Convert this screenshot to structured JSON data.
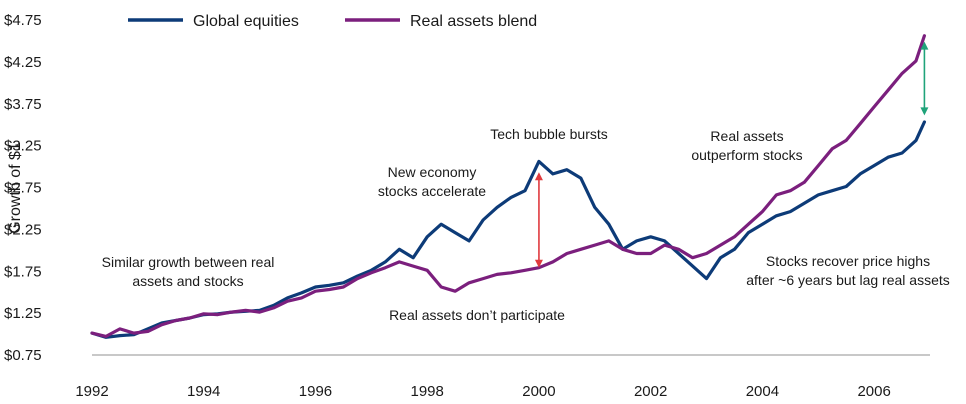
{
  "chart_data": {
    "type": "line",
    "ylabel": "Growth of $1",
    "xlabel": "",
    "xlim": [
      1992,
      2007
    ],
    "ylim": [
      0.75,
      4.75
    ],
    "x_ticks": [
      "1992",
      "1994",
      "1996",
      "1998",
      "2000",
      "2002",
      "2004",
      "2006"
    ],
    "y_ticks": [
      "$4.75",
      "$4.25",
      "$3.75",
      "$3.25",
      "$2.75",
      "$2.25",
      "$1.75",
      "$1.25",
      "$0.75"
    ],
    "grid": false,
    "legend": "top-left",
    "x": [
      1992.0,
      1992.25,
      1992.5,
      1992.75,
      1993.0,
      1993.25,
      1993.5,
      1993.75,
      1994.0,
      1994.25,
      1994.5,
      1994.75,
      1995.0,
      1995.25,
      1995.5,
      1995.75,
      1996.0,
      1996.25,
      1996.5,
      1996.75,
      1997.0,
      1997.25,
      1997.5,
      1997.75,
      1998.0,
      1998.25,
      1998.5,
      1998.75,
      1999.0,
      1999.25,
      1999.5,
      1999.75,
      2000.0,
      2000.25,
      2000.5,
      2000.75,
      2001.0,
      2001.25,
      2001.5,
      2001.75,
      2002.0,
      2002.25,
      2002.5,
      2002.75,
      2003.0,
      2003.25,
      2003.5,
      2003.75,
      2004.0,
      2004.25,
      2004.5,
      2004.75,
      2005.0,
      2005.25,
      2005.5,
      2005.75,
      2006.0,
      2006.25,
      2006.5,
      2006.75,
      2006.9
    ],
    "series": [
      {
        "name": "Global equities",
        "color": "#0d3b78",
        "values": [
          1.0,
          0.95,
          0.97,
          0.98,
          1.05,
          1.12,
          1.15,
          1.18,
          1.22,
          1.23,
          1.25,
          1.26,
          1.27,
          1.33,
          1.42,
          1.48,
          1.55,
          1.57,
          1.6,
          1.68,
          1.75,
          1.85,
          2.0,
          1.9,
          2.15,
          2.3,
          2.2,
          2.1,
          2.35,
          2.5,
          2.62,
          2.7,
          3.05,
          2.9,
          2.95,
          2.85,
          2.5,
          2.3,
          2.0,
          2.1,
          2.15,
          2.1,
          1.95,
          1.8,
          1.65,
          1.9,
          2.0,
          2.2,
          2.3,
          2.4,
          2.45,
          2.55,
          2.65,
          2.7,
          2.75,
          2.9,
          3.0,
          3.1,
          3.15,
          3.3,
          3.52
        ]
      },
      {
        "name": "Real assets blend",
        "color": "#7b1f7d",
        "values": [
          1.0,
          0.96,
          1.05,
          1.0,
          1.02,
          1.1,
          1.15,
          1.18,
          1.23,
          1.22,
          1.25,
          1.27,
          1.25,
          1.3,
          1.38,
          1.42,
          1.5,
          1.52,
          1.55,
          1.65,
          1.72,
          1.78,
          1.85,
          1.8,
          1.75,
          1.55,
          1.5,
          1.6,
          1.65,
          1.7,
          1.72,
          1.75,
          1.78,
          1.85,
          1.95,
          2.0,
          2.05,
          2.1,
          2.0,
          1.95,
          1.95,
          2.05,
          2.0,
          1.9,
          1.95,
          2.05,
          2.15,
          2.3,
          2.45,
          2.65,
          2.7,
          2.8,
          3.0,
          3.2,
          3.3,
          3.5,
          3.7,
          3.9,
          4.1,
          4.25,
          4.55
        ]
      }
    ],
    "annotations": [
      {
        "id": "similar",
        "lines": [
          "Similar growth between real",
          "assets and stocks"
        ]
      },
      {
        "id": "dont",
        "lines": [
          "Real assets don’t participate"
        ]
      },
      {
        "id": "economy",
        "lines": [
          "New economy",
          "stocks accelerate"
        ]
      },
      {
        "id": "bubble",
        "lines": [
          "Tech bubble bursts"
        ]
      },
      {
        "id": "outperform",
        "lines": [
          "Real assets",
          "outperform stocks"
        ]
      },
      {
        "id": "recover",
        "lines": [
          "Stocks recover price highs",
          "after ~6 years but lag real assets"
        ]
      }
    ],
    "arrows": [
      {
        "x": 2000.0,
        "y1": 1.78,
        "y2": 2.92,
        "color": "#e03a3e"
      },
      {
        "x": 2006.9,
        "y1": 3.6,
        "y2": 4.48,
        "color": "#1fa37a"
      }
    ]
  }
}
